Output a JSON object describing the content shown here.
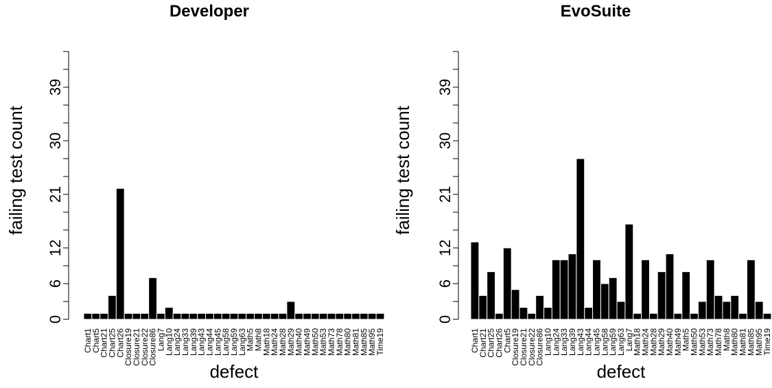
{
  "chart_data": [
    {
      "type": "bar",
      "title": "Developer",
      "x_label": "defect",
      "y_label": "failing test count",
      "categories": [
        "Chart1",
        "Chart5",
        "Chart21",
        "Chart25",
        "Chart26",
        "Closure19",
        "Closure21",
        "Closure22",
        "Closure86",
        "Lang7",
        "Lang10",
        "Lang24",
        "Lang33",
        "Lang39",
        "Lang43",
        "Lang44",
        "Lang45",
        "Lang58",
        "Lang59",
        "Lang63",
        "Math5",
        "Math8",
        "Math18",
        "Math24",
        "Math28",
        "Math29",
        "Math40",
        "Math49",
        "Math50",
        "Math53",
        "Math73",
        "Math78",
        "Math80",
        "Math81",
        "Math85",
        "Math95",
        "Time19"
      ],
      "values": [
        1,
        1,
        1,
        4,
        22,
        1,
        1,
        1,
        7,
        1,
        2,
        1,
        1,
        1,
        1,
        1,
        1,
        1,
        1,
        1,
        1,
        1,
        1,
        1,
        1,
        3,
        1,
        1,
        1,
        1,
        1,
        1,
        1,
        1,
        1,
        1,
        1
      ],
      "color": "#000000",
      "ylim": [
        0,
        45
      ],
      "yticks": [
        0,
        6,
        12,
        21,
        30,
        39
      ],
      "yticks_minor": [
        3,
        9,
        15,
        18,
        24,
        27,
        33,
        36,
        42,
        45
      ]
    },
    {
      "type": "bar",
      "title": "EvoSuite",
      "x_label": "defect",
      "y_label": "failing test count",
      "categories": [
        "Chart1",
        "Chart21",
        "Chart25",
        "Chart26",
        "Chart5",
        "Closure19",
        "Closure21",
        "Closure22",
        "Closure86",
        "Lang10",
        "Lang24",
        "Lang33",
        "Lang39",
        "Lang43",
        "Lang44",
        "Lang45",
        "Lang58",
        "Lang59",
        "Lang63",
        "Lang7",
        "Math18",
        "Math24",
        "Math28",
        "Math29",
        "Math40",
        "Math49",
        "Math5",
        "Math50",
        "Math53",
        "Math73",
        "Math78",
        "Math8",
        "Math80",
        "Math81",
        "Math85",
        "Math95",
        "Time19"
      ],
      "values": [
        13,
        4,
        8,
        1,
        12,
        5,
        2,
        1,
        4,
        2,
        10,
        10,
        11,
        27,
        2,
        10,
        6,
        7,
        3,
        16,
        1,
        10,
        1,
        8,
        11,
        1,
        8,
        1,
        3,
        10,
        4,
        3,
        4,
        1,
        10,
        3,
        1
      ],
      "color": "#000000",
      "ylim": [
        0,
        45
      ],
      "yticks": [
        0,
        6,
        12,
        21,
        30,
        39
      ],
      "yticks_minor": [
        3,
        9,
        15,
        18,
        24,
        27,
        33,
        36,
        42,
        45
      ]
    }
  ]
}
